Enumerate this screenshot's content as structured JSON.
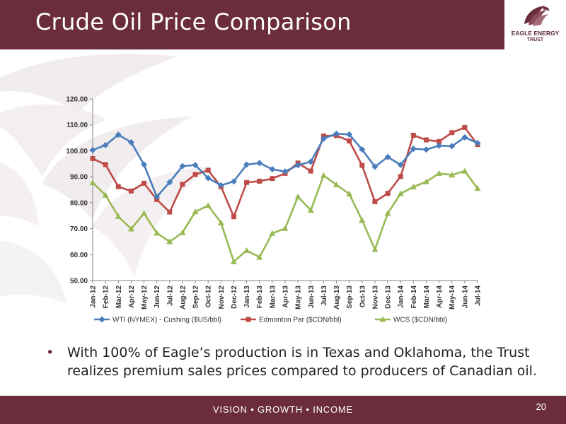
{
  "slide": {
    "title": "Crude Oil Price Comparison",
    "bullet": "With 100% of Eagle’s production is in Texas and Oklahoma, the Trust realizes premium sales prices compared to producers of Canadian oil.",
    "footer": "VISION • GROWTH • INCOME",
    "page_number": "20"
  },
  "logo": {
    "line1": "EAGLE ENERGY",
    "line2": "TRUST"
  },
  "colors": {
    "brand": "#6b2d3b",
    "wti": "#4a7ebb",
    "edmonton": "#be4b48",
    "wcs": "#98b954"
  },
  "chart_data": {
    "type": "line",
    "categories": [
      "Jan-12",
      "Feb-12",
      "Mar-12",
      "Apr-12",
      "May-12",
      "Jun-12",
      "Jul-12",
      "Aug-12",
      "Sep-12",
      "Oct-12",
      "Nov-12",
      "Dec-12",
      "Jan-13",
      "Feb-13",
      "Mar-13",
      "Apr-13",
      "May-13",
      "Jun-13",
      "Jul-13",
      "Aug-13",
      "Sep-13",
      "Oct-13",
      "Nov-13",
      "Dec-13",
      "Jan-14",
      "Feb-14",
      "Mar-14",
      "Apr-14",
      "May-14",
      "Jun-14",
      "Jul-14"
    ],
    "ylim": [
      50,
      120
    ],
    "yticks": [
      "50.00",
      "60.00",
      "70.00",
      "80.00",
      "90.00",
      "100.00",
      "110.00",
      "120.00"
    ],
    "grid": false,
    "legend_position": "bottom",
    "series": [
      {
        "name": "WTI (NYMEX) - Cushing ($US/bbl)",
        "color": "#4a7ebb",
        "marker": "diamond",
        "values": [
          100.3,
          102.2,
          106.2,
          103.3,
          94.7,
          82.3,
          87.9,
          94.1,
          94.5,
          89.5,
          86.7,
          88.2,
          94.7,
          95.3,
          92.9,
          92.0,
          94.5,
          95.8,
          104.7,
          106.6,
          106.3,
          100.5,
          93.9,
          97.6,
          94.6,
          100.8,
          100.5,
          102.0,
          101.8,
          105.2,
          103.0
        ]
      },
      {
        "name": "Edmonton Par ($CDN/bbl)",
        "color": "#be4b48",
        "marker": "square",
        "values": [
          97.0,
          94.7,
          86.2,
          84.5,
          87.5,
          81.2,
          76.4,
          87.1,
          90.9,
          92.5,
          86.2,
          74.6,
          87.8,
          88.3,
          89.3,
          91.3,
          95.3,
          92.2,
          105.7,
          105.9,
          103.8,
          94.4,
          80.4,
          83.6,
          90.1,
          106.0,
          104.2,
          103.6,
          107.0,
          109.0,
          102.4
        ]
      },
      {
        "name": "WCS ($CDN/bbl)",
        "color": "#98b954",
        "marker": "triangle",
        "values": [
          87.7,
          82.9,
          74.7,
          69.9,
          75.9,
          68.3,
          65.0,
          68.5,
          76.5,
          78.9,
          72.3,
          57.3,
          61.6,
          59.0,
          68.2,
          70.1,
          82.3,
          77.1,
          90.5,
          86.9,
          83.4,
          73.2,
          62.0,
          75.9,
          83.5,
          86.1,
          88.1,
          91.3,
          90.7,
          92.2,
          85.5
        ]
      }
    ]
  }
}
